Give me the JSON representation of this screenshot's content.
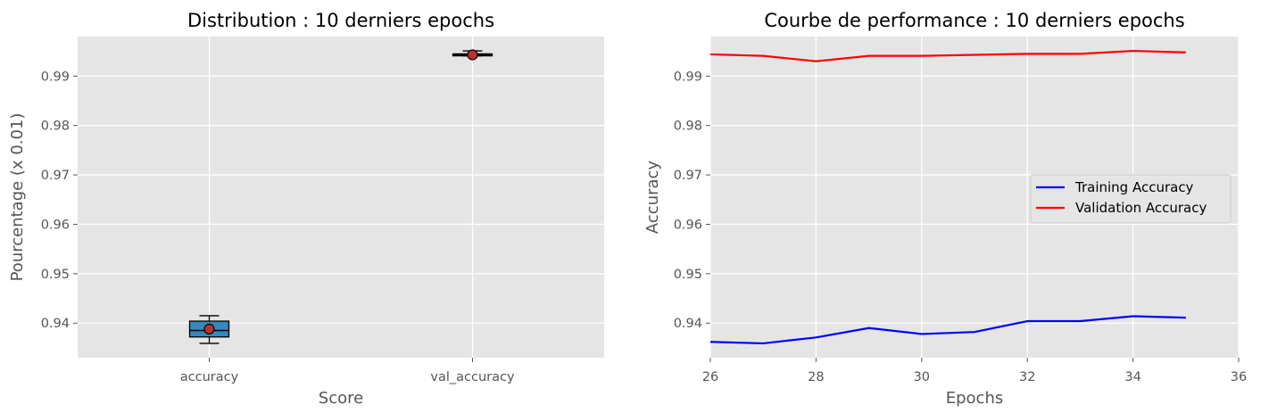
{
  "chart_data": [
    {
      "type": "box",
      "title": "Distribution : 10 derniers epochs",
      "xlabel": "Score",
      "ylabel": "Pourcentage (x 0.01)",
      "categories": [
        "accuracy",
        "val_accuracy"
      ],
      "ylim": [
        0.933,
        0.998
      ],
      "yticks": [
        "0.94",
        "0.95",
        "0.96",
        "0.97",
        "0.98",
        "0.99"
      ],
      "ytick_values": [
        0.94,
        0.95,
        0.96,
        0.97,
        0.98,
        0.99
      ],
      "grid": true,
      "boxes": [
        {
          "category": "accuracy",
          "whisker_low": 0.9359,
          "q1": 0.9372,
          "median": 0.9385,
          "q3": 0.9404,
          "whisker_high": 0.9415,
          "mean": 0.9388
        },
        {
          "category": "val_accuracy",
          "whisker_low": 0.9941,
          "q1": 0.9941,
          "median": 0.9943,
          "q3": 0.9945,
          "whisker_high": 0.9951,
          "mean": 0.9943
        }
      ],
      "box_color": "#348abd"
    },
    {
      "type": "line",
      "title": "Courbe de performance : 10 derniers epochs",
      "xlabel": "Epochs",
      "ylabel": "Accuracy",
      "xlim": [
        26,
        36
      ],
      "ylim": [
        0.933,
        0.998
      ],
      "xticks": [
        "26",
        "28",
        "30",
        "32",
        "34",
        "36"
      ],
      "xtick_values": [
        26,
        28,
        30,
        32,
        34,
        36
      ],
      "yticks": [
        "0.94",
        "0.95",
        "0.96",
        "0.97",
        "0.98",
        "0.99"
      ],
      "ytick_values": [
        0.94,
        0.95,
        0.96,
        0.97,
        0.98,
        0.99
      ],
      "grid": true,
      "legend_position": "center-right",
      "x": [
        26,
        27,
        28,
        29,
        30,
        31,
        32,
        33,
        34,
        35
      ],
      "series": [
        {
          "name": "Training Accuracy",
          "color": "#0000ff",
          "values": [
            0.9362,
            0.9359,
            0.9371,
            0.939,
            0.9378,
            0.9382,
            0.9404,
            0.9404,
            0.9414,
            0.9411
          ]
        },
        {
          "name": "Validation Accuracy",
          "color": "#ff0000",
          "values": [
            0.9944,
            0.9941,
            0.993,
            0.9941,
            0.9941,
            0.9943,
            0.9945,
            0.9945,
            0.9951,
            0.9948
          ]
        }
      ]
    }
  ]
}
